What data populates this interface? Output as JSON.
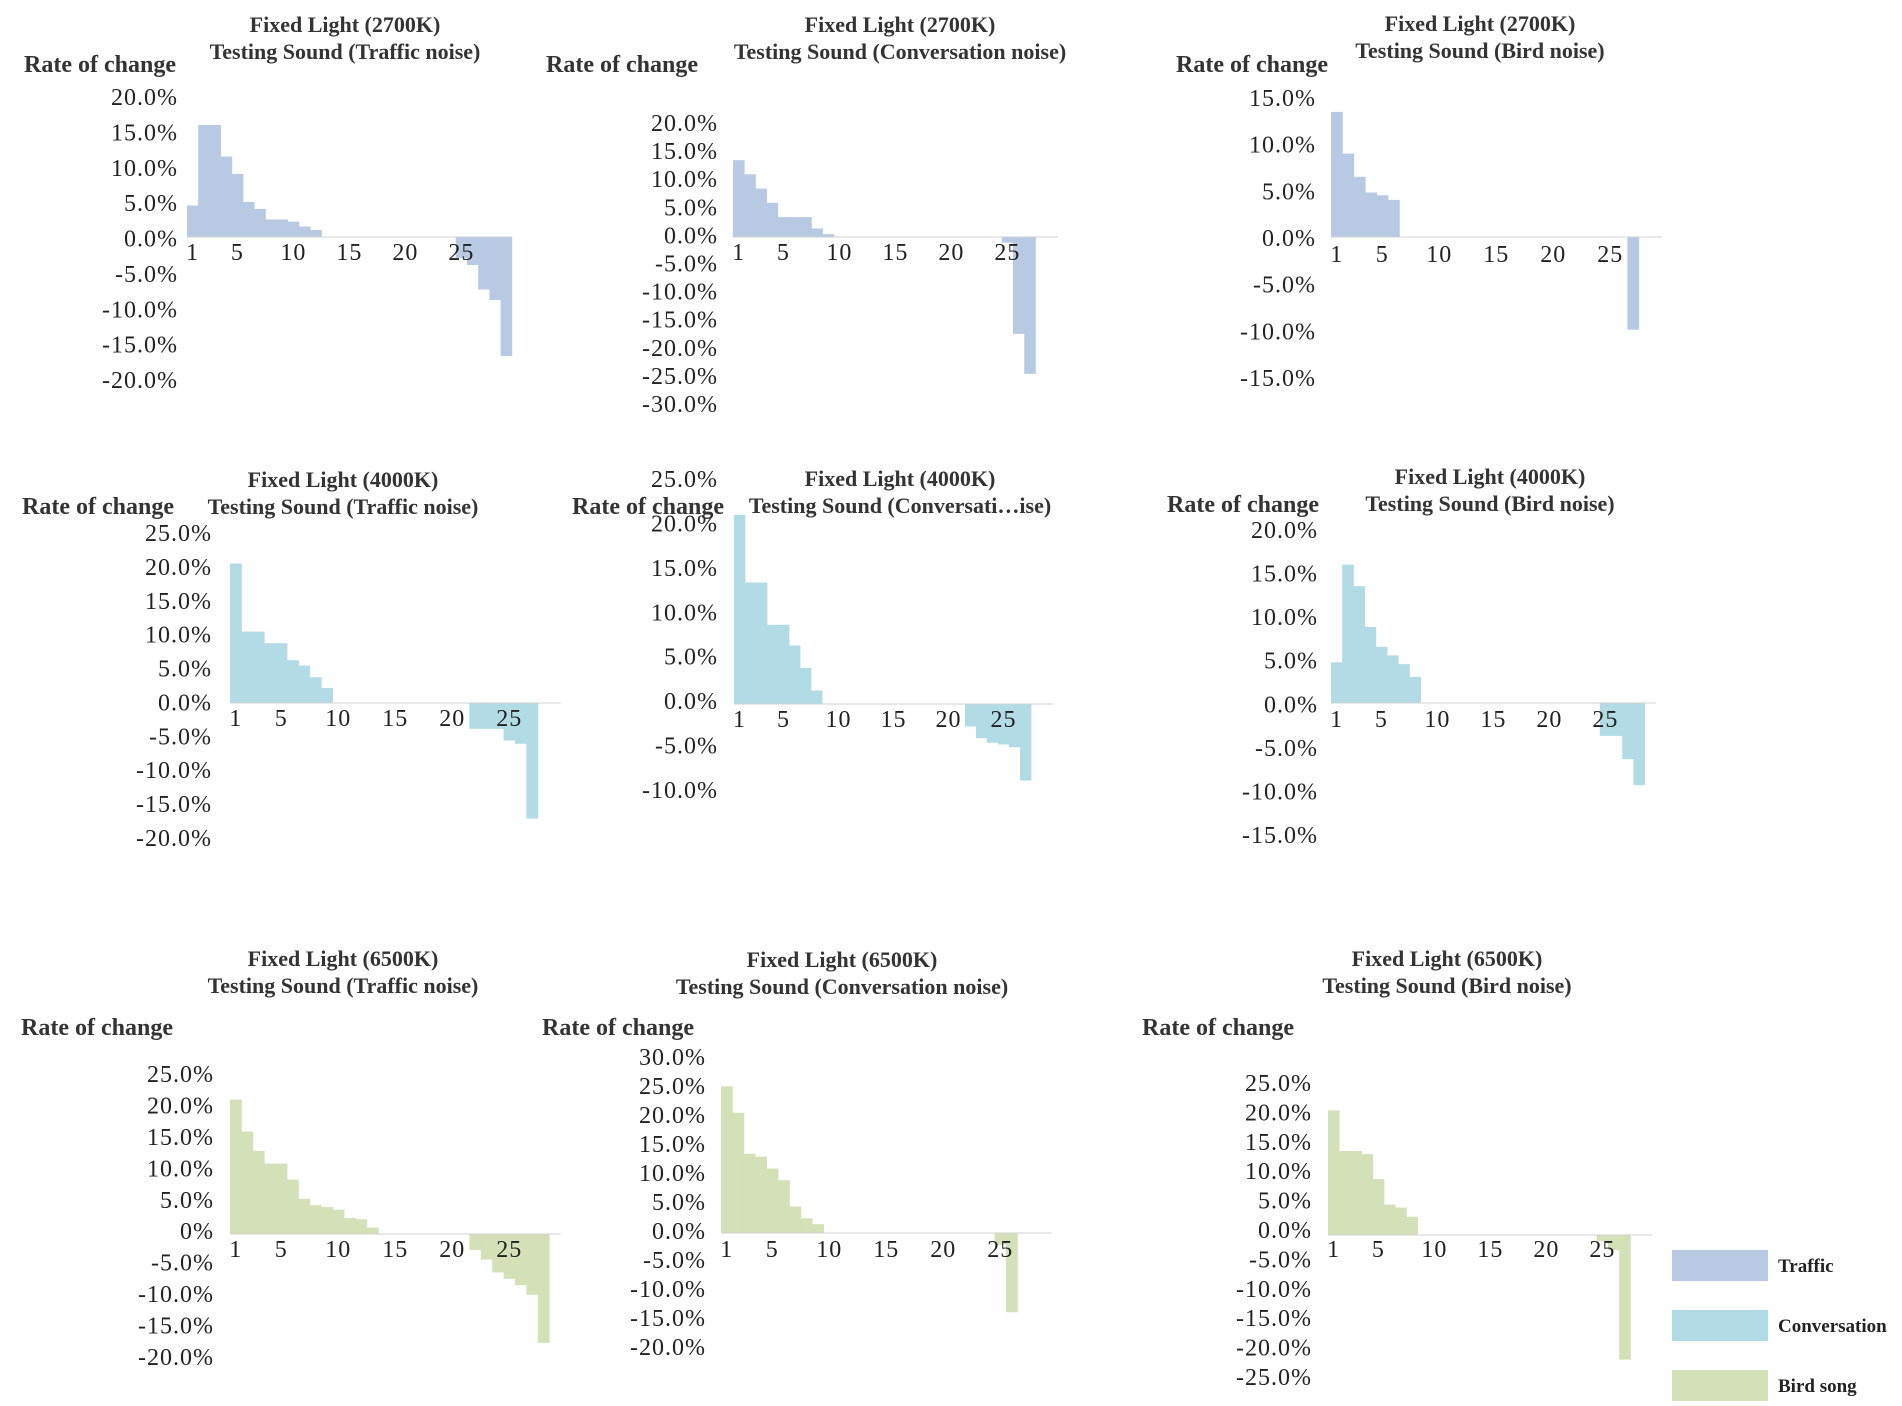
{
  "chart_data": [
    {
      "type": "bar",
      "title_line1": "Fixed Light (2700K)",
      "title_line2": "Testing Sound (Traffic noise)",
      "ylabel": "Rate of change",
      "series": "Traffic",
      "color": "#b8cae3",
      "x_ticks": [
        1,
        5,
        10,
        15,
        20,
        25
      ],
      "y_ticks": [
        "20.0%",
        "15.0%",
        "10.0%",
        "5.0%",
        "0.0%",
        "-5.0%",
        "-10.0%",
        "-15.0%",
        "-20.0%"
      ],
      "ylim": [
        -20,
        20
      ],
      "values": [
        4.5,
        16,
        16,
        11.5,
        9,
        5,
        4,
        2.5,
        2.5,
        2.2,
        1.5,
        1,
        0,
        0,
        0,
        0,
        0,
        0,
        0,
        0,
        0,
        0,
        0,
        0,
        -3,
        -4,
        -7.5,
        -9,
        -17
      ]
    },
    {
      "type": "bar",
      "title_line1": "Fixed Light (2700K)",
      "title_line2": "Testing Sound (Conversation noise)",
      "ylabel": "Rate of change",
      "series": "Traffic",
      "color": "#b8cae3",
      "x_ticks": [
        1,
        5,
        10,
        15,
        20,
        25
      ],
      "y_ticks": [
        "20.0%",
        "15.0%",
        "10.0%",
        "5.0%",
        "0.0%",
        "-5.0%",
        "-10.0%",
        "-15.0%",
        "-20.0%",
        "-25.0%",
        "-30.0%"
      ],
      "ylim": [
        -30,
        20
      ],
      "values": [
        13.5,
        11,
        8.5,
        6,
        3.5,
        3.5,
        3.5,
        1.5,
        0.5,
        0,
        0,
        0,
        0,
        0,
        0,
        0,
        0,
        0,
        0,
        0,
        0,
        0,
        0,
        0,
        -1,
        -17,
        -24
      ]
    },
    {
      "type": "bar",
      "title_line1": "Fixed Light (2700K)",
      "title_line2": "Testing Sound (Bird noise)",
      "ylabel": "Rate of change",
      "series": "Traffic",
      "color": "#b8cae3",
      "x_ticks": [
        1,
        5,
        10,
        15,
        20,
        25
      ],
      "y_ticks": [
        "15.0%",
        "10.0%",
        "5.0%",
        "0.0%",
        "-5.0%",
        "-10.0%",
        "-15.0%"
      ],
      "ylim": [
        -15,
        15
      ],
      "values": [
        13.5,
        9,
        6.5,
        4.8,
        4.5,
        4,
        0,
        0,
        0,
        0,
        0,
        0,
        0,
        0,
        0,
        0,
        0,
        0,
        0,
        0,
        0,
        0,
        0,
        0,
        0,
        0,
        -10
      ]
    },
    {
      "type": "bar",
      "title_line1": "Fixed Light (4000K)",
      "title_line2": "Testing Sound (Traffic noise)",
      "ylabel": "Rate of change",
      "series": "Conversation",
      "color": "#b2dbe5",
      "x_ticks": [
        1,
        5,
        10,
        15,
        20,
        25
      ],
      "y_ticks": [
        "25.0%",
        "20.0%",
        "15.0%",
        "10.0%",
        "5.0%",
        "0.0%",
        "-5.0%",
        "-10.0%",
        "-15.0%",
        "-20.0%"
      ],
      "ylim": [
        -20,
        25
      ],
      "values": [
        20.5,
        10.5,
        10.5,
        8.8,
        8.8,
        6.3,
        5.5,
        3.8,
        2.2,
        0,
        0,
        0,
        0,
        0,
        0,
        0,
        0,
        0,
        0,
        0,
        0,
        -3.8,
        -3.8,
        -3.8,
        -5.5,
        -6,
        -17
      ]
    },
    {
      "type": "bar",
      "title_line1": "Fixed Light (4000K)",
      "title_line2": "Testing Sound (Conversati…ise)",
      "ylabel": "Rate of change",
      "series": "Conversation",
      "color": "#b2dbe5",
      "x_ticks": [
        1,
        5,
        10,
        15,
        20,
        25
      ],
      "y_ticks": [
        "25.0%",
        "20.0%",
        "15.0%",
        "10.0%",
        "5.0%",
        "0.0%",
        "-5.0%",
        "-10.0%"
      ],
      "ylim": [
        -10,
        25
      ],
      "values": [
        21,
        13.5,
        13.5,
        8.8,
        8.8,
        6.5,
        4,
        1.5,
        0,
        0,
        0,
        0,
        0,
        0,
        0,
        0,
        0,
        0,
        0,
        0,
        0,
        -2.5,
        -3.8,
        -4.3,
        -4.5,
        -4.8,
        -8.5
      ]
    },
    {
      "type": "bar",
      "title_line1": "Fixed Light (4000K)",
      "title_line2": "Testing Sound (Bird noise)",
      "ylabel": "Rate of change",
      "series": "Conversation",
      "color": "#b2dbe5",
      "x_ticks": [
        1,
        5,
        10,
        15,
        20,
        25
      ],
      "y_ticks": [
        "20.0%",
        "15.0%",
        "10.0%",
        "5.0%",
        "0.0%",
        "-5.0%",
        "-10.0%",
        "-15.0%"
      ],
      "ylim": [
        -15,
        20
      ],
      "values": [
        4.7,
        16,
        13.5,
        8.8,
        6.5,
        5.5,
        4.5,
        3,
        0,
        0,
        0,
        0,
        0,
        0,
        0,
        0,
        0,
        0,
        0,
        0,
        0,
        0,
        0,
        0,
        -3.8,
        -3.8,
        -6.5,
        -9.5
      ]
    },
    {
      "type": "bar",
      "title_line1": "Fixed Light (6500K)",
      "title_line2": "Testing Sound (Traffic noise)",
      "ylabel": "Rate of change",
      "series": "Bird song",
      "color": "#d3e0b8",
      "x_ticks": [
        1,
        5,
        10,
        15,
        20,
        25
      ],
      "y_ticks": [
        "25.0%",
        "20.0%",
        "15.0%",
        "10.0%",
        "5.0%",
        "0%",
        "-5.0%",
        "-10.0%",
        "-15.0%",
        "-20.0%"
      ],
      "ylim": [
        -20,
        25
      ],
      "values": [
        21,
        16,
        13,
        11,
        11,
        8.5,
        5.5,
        4.5,
        4.2,
        3.8,
        2.5,
        2.3,
        1,
        0,
        0,
        0,
        0,
        0,
        0,
        0,
        0,
        -2.5,
        -4,
        -6,
        -7,
        -8,
        -9.5,
        -17
      ]
    },
    {
      "type": "bar",
      "title_line1": "Fixed Light (6500K)",
      "title_line2": "Testing Sound (Conversation noise)",
      "ylabel": "Rate of change",
      "series": "Bird song",
      "color": "#d3e0b8",
      "x_ticks": [
        1,
        5,
        10,
        15,
        20,
        25
      ],
      "y_ticks": [
        "30.0%",
        "25.0%",
        "20.0%",
        "15.0%",
        "10.0%",
        "5.0%",
        "0.0%",
        "-5.0%",
        "-10.0%",
        "-15.0%",
        "-20.0%"
      ],
      "ylim": [
        -20,
        30
      ],
      "values": [
        25,
        20.5,
        13.5,
        13,
        11,
        9,
        4.5,
        2.5,
        1.5,
        0,
        0,
        0,
        0,
        0,
        0,
        0,
        0,
        0,
        0,
        0,
        0,
        0,
        0,
        0,
        -2,
        -13.5
      ]
    },
    {
      "type": "bar",
      "title_line1": "Fixed Light (6500K)",
      "title_line2": "Testing Sound (Bird noise)",
      "ylabel": "Rate of change",
      "series": "Bird song",
      "color": "#d3e0b8",
      "x_ticks": [
        1,
        5,
        10,
        15,
        20,
        25
      ],
      "y_ticks": [
        "25.0%",
        "20.0%",
        "15.0%",
        "10.0%",
        "5.0%",
        "0.0%",
        "-5.0%",
        "-10.0%",
        "-15.0%",
        "-20.0%",
        "-25.0%"
      ],
      "ylim": [
        -25,
        25
      ],
      "values": [
        20.5,
        13.8,
        13.8,
        13.3,
        9.2,
        5,
        4.5,
        3,
        0,
        0,
        0,
        0,
        0,
        0,
        0,
        0,
        0,
        0,
        0,
        0,
        0,
        0,
        0,
        0,
        -1,
        -2.5,
        -20.5
      ]
    }
  ],
  "legend": {
    "items": [
      {
        "label": "Traffic",
        "color": "#b8cae3"
      },
      {
        "label": "Conversation",
        "color": "#b2dbe5"
      },
      {
        "label": "Bird song",
        "color": "#d3e0b8"
      }
    ]
  }
}
